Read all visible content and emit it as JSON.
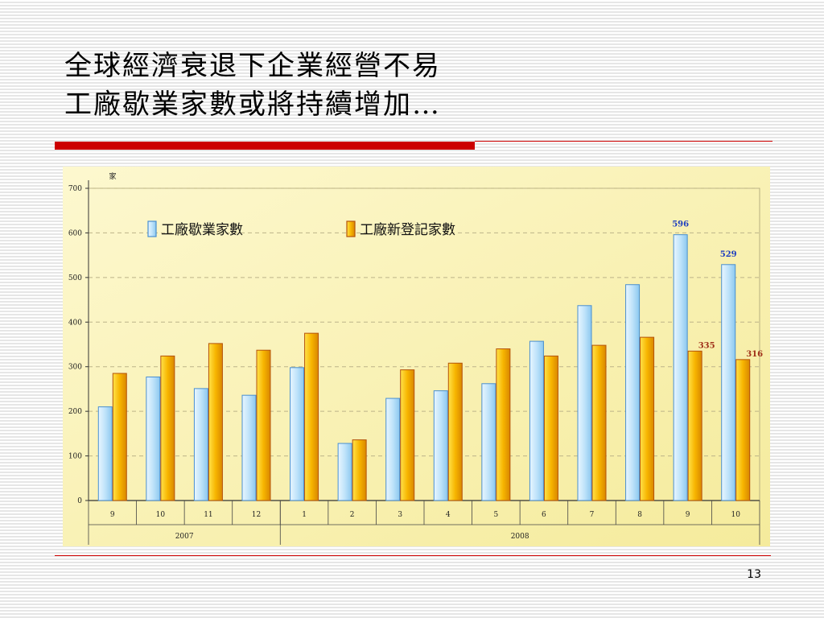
{
  "slide": {
    "title_line1": "全球經濟衰退下企業經營不易",
    "title_line2": "工廠歇業家數或將持續增加…",
    "page_number": "13"
  },
  "colors": {
    "accent_red": "#cc0000",
    "chart_background": "#fdf6c6",
    "closed_bar_fill": "#c6e7fb",
    "closed_bar_stroke": "#4a8fd0",
    "new_bar_fill": "#f5b400",
    "new_bar_stroke": "#b5530a",
    "closed_label": "#1f3fbf",
    "new_label": "#a0301a"
  },
  "chart_data": {
    "type": "bar",
    "ylabel": "家",
    "ylim": [
      0,
      700
    ],
    "yticks": [
      "0",
      "100",
      "200",
      "300",
      "400",
      "500",
      "600",
      "700"
    ],
    "categories": [
      "9",
      "10",
      "11",
      "12",
      "1",
      "2",
      "3",
      "4",
      "5",
      "6",
      "7",
      "8",
      "9",
      "10"
    ],
    "groups": [
      {
        "label": "2007",
        "start": 0,
        "end": 3
      },
      {
        "label": "2008",
        "start": 4,
        "end": 13
      }
    ],
    "legend_position": "top-left",
    "grid": true,
    "series": [
      {
        "name": "工廠歇業家數",
        "values": [
          210,
          277,
          251,
          236,
          298,
          128,
          229,
          246,
          262,
          357,
          437,
          484,
          596,
          529
        ],
        "labels": [
          "",
          "",
          "",
          "",
          "",
          "",
          "",
          "",
          "",
          "",
          "",
          "",
          "596",
          "529"
        ]
      },
      {
        "name": "工廠新登記家數",
        "values": [
          285,
          324,
          352,
          337,
          375,
          136,
          293,
          308,
          340,
          324,
          348,
          366,
          335,
          316
        ],
        "labels": [
          "",
          "",
          "",
          "",
          "",
          "",
          "",
          "",
          "",
          "",
          "",
          "",
          "335",
          "316"
        ]
      }
    ]
  }
}
